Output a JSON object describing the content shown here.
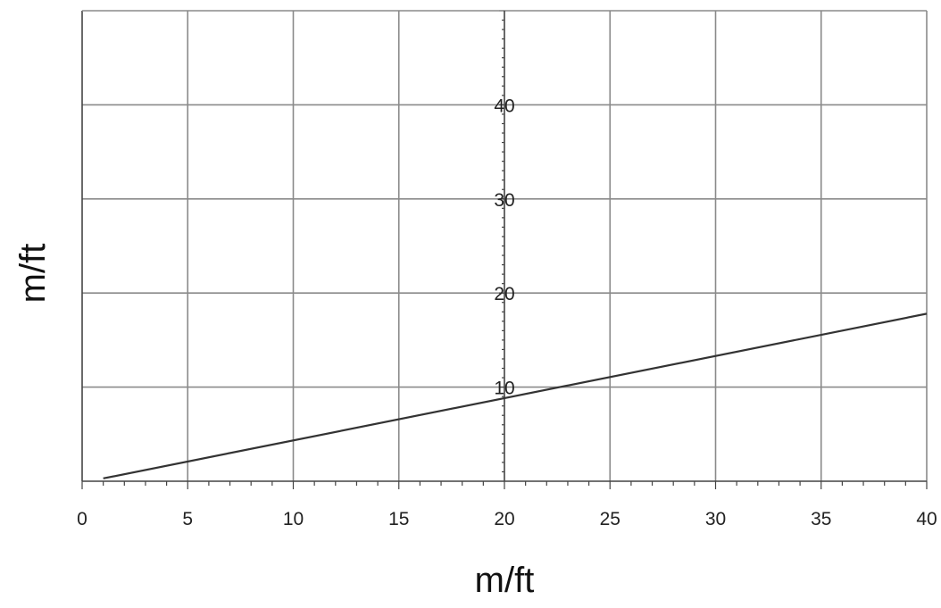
{
  "chart_data": {
    "type": "line",
    "title": "",
    "xlabel": "m/ft",
    "ylabel": "m/ft",
    "xlim": [
      0,
      40
    ],
    "ylim": [
      0,
      50
    ],
    "x_ticks": [
      0,
      5,
      10,
      15,
      20,
      25,
      30,
      35,
      40
    ],
    "y_ticks": [
      10,
      20,
      30,
      40
    ],
    "grid": true,
    "legend": "none",
    "series": [
      {
        "x": [
          1,
          40
        ],
        "y": [
          0.3,
          17.8
        ],
        "color": "#333333"
      }
    ]
  }
}
